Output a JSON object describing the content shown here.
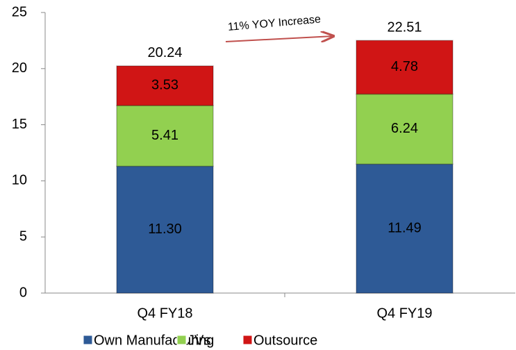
{
  "chart_data": {
    "type": "stacked_bar",
    "categories": [
      "Q4 FY18",
      "Q4 FY19"
    ],
    "series": [
      {
        "name": "Own Manufacturing",
        "color": "#2e5a96",
        "values": [
          11.3,
          11.49
        ],
        "value_labels": [
          "11.30",
          "11.49"
        ]
      },
      {
        "name": "JVs",
        "color": "#92d050",
        "values": [
          5.41,
          6.24
        ]
      },
      {
        "name": "Outsource",
        "color": "#d01515",
        "values": [
          3.53,
          4.78
        ]
      }
    ],
    "totals": [
      20.24,
      22.51
    ],
    "annotation": "11% YOY Increase",
    "ylim": [
      0,
      25
    ],
    "yticks": [
      0,
      5,
      10,
      15,
      20,
      25
    ],
    "legend": "bottom"
  }
}
